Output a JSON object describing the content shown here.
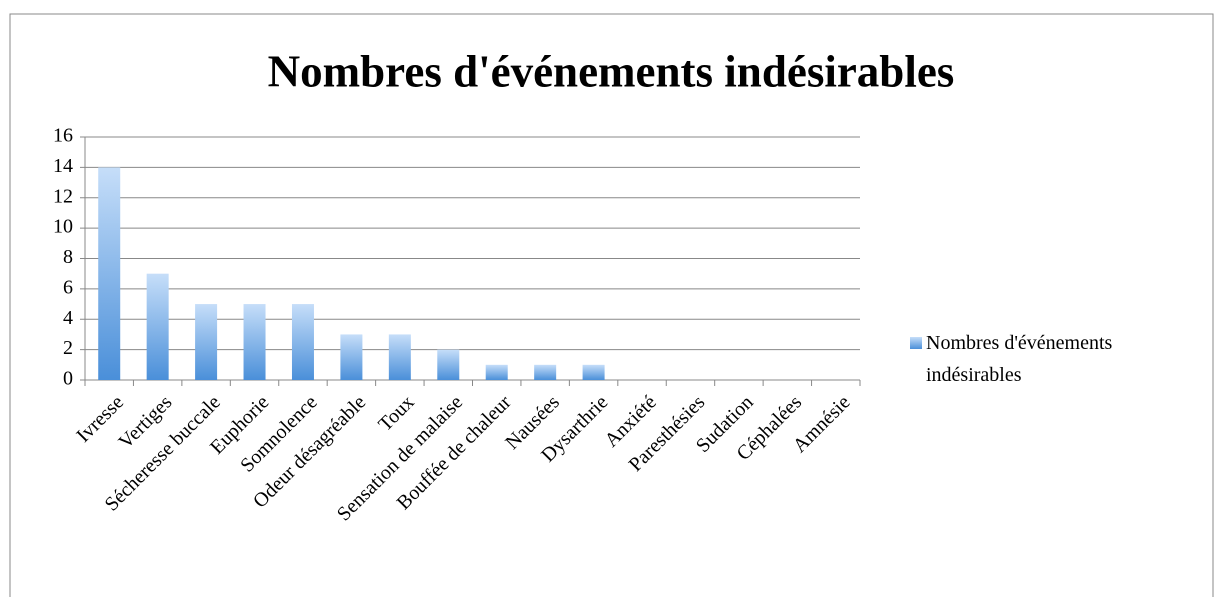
{
  "chart_data": {
    "type": "bar",
    "title": "Nombres d'événements indésirables",
    "categories": [
      "Ivresse",
      "Vertiges",
      "Sécheresse buccale",
      "Euphorie",
      "Somnolence",
      "Odeur désagréable",
      "Toux",
      "Sensation de malaise",
      "Bouffée de chaleur",
      "Nausées",
      "Dysarthrie",
      "Anxiété",
      "Paresthésies",
      "Sudation",
      "Céphalées",
      "Amnésie"
    ],
    "series": [
      {
        "name": "Nombres d'événements indésirables",
        "color": "#4a8fd9",
        "values": [
          14,
          7,
          5,
          5,
          5,
          3,
          3,
          2,
          1,
          1,
          1,
          0,
          0,
          0,
          0,
          0
        ]
      }
    ],
    "ylim": [
      0,
      16
    ],
    "yticks": [
      0,
      2,
      4,
      6,
      8,
      10,
      12,
      14,
      16
    ],
    "grid": true,
    "legend": "right"
  }
}
